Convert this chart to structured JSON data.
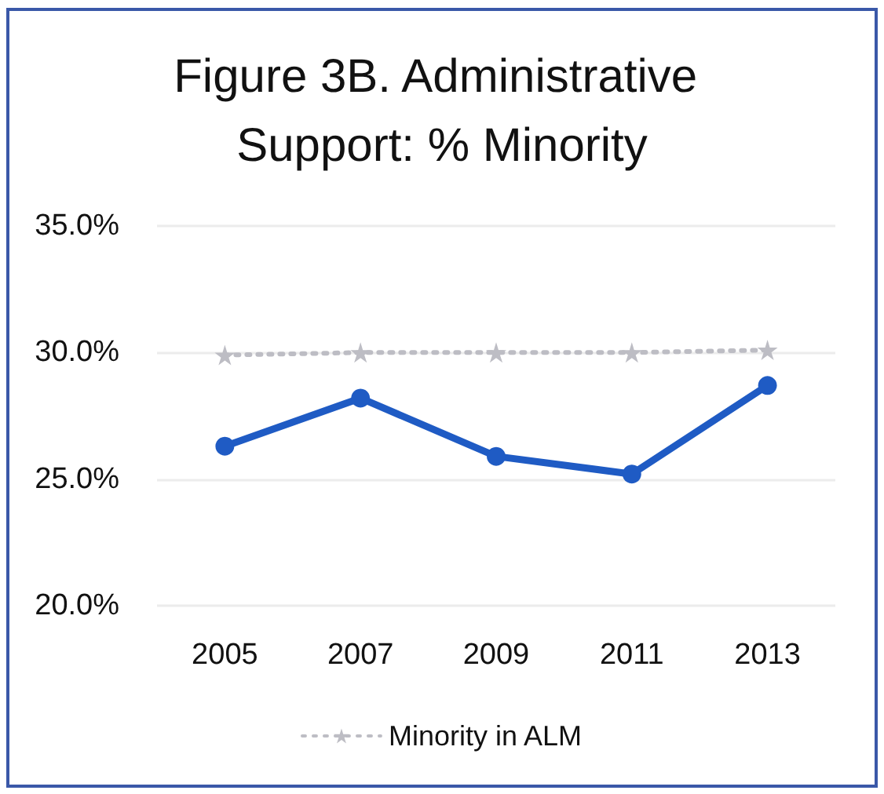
{
  "chart_data": {
    "type": "line",
    "title": "Figure 3B. Administrative Support: % Minority",
    "categories": [
      "2005",
      "2007",
      "2009",
      "2011",
      "2013"
    ],
    "series": [
      {
        "color": "#1f5bc4",
        "values": [
          26.3,
          28.2,
          25.9,
          25.2,
          28.7
        ],
        "marker": "circle",
        "line_style": "solid"
      },
      {
        "name": "Minority in ALM",
        "color": "#bdbdc4",
        "values": [
          29.9,
          30.0,
          30.0,
          30.0,
          30.1
        ],
        "marker": "star",
        "line_style": "dotted"
      }
    ],
    "ylim": [
      20,
      35
    ],
    "yticks": [
      {
        "value": 20,
        "label": "20.0%"
      },
      {
        "value": 25,
        "label": "25.0%"
      },
      {
        "value": 30,
        "label": "30.0%"
      },
      {
        "value": 35,
        "label": "35.0%"
      }
    ],
    "grid": "y",
    "legend": "bottom"
  }
}
